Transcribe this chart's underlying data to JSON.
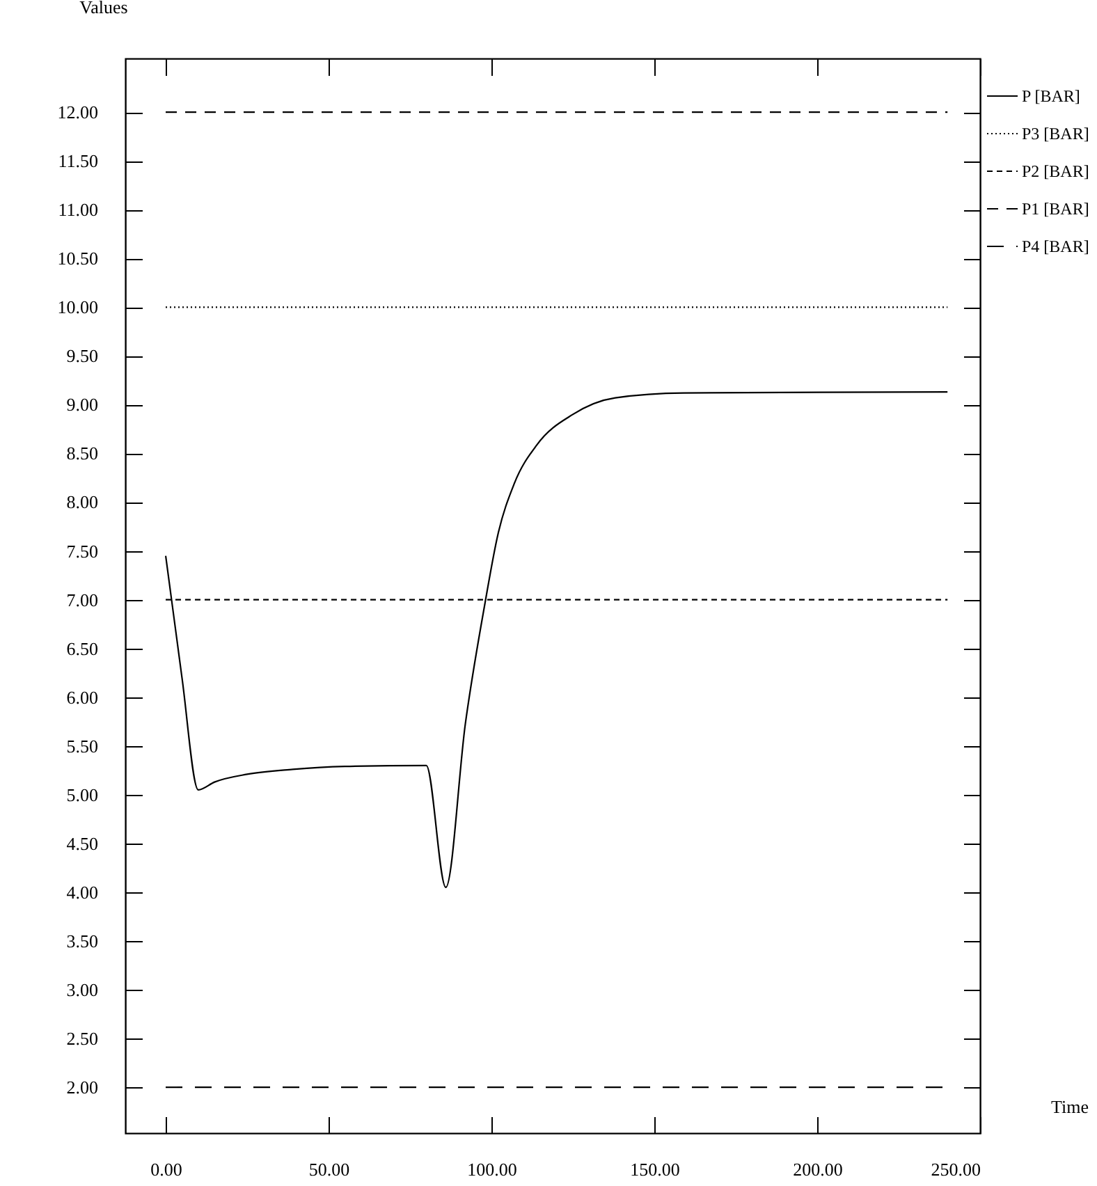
{
  "chart_data": {
    "type": "line",
    "xlabel": "Time",
    "ylabel": "Values",
    "xlim": [
      -12.4,
      250
    ],
    "ylim": [
      1.53,
      12.55
    ],
    "xticks": [
      {
        "value": 0,
        "label": "0.00"
      },
      {
        "value": 50,
        "label": "50.00"
      },
      {
        "value": 100,
        "label": "100.00"
      },
      {
        "value": 150,
        "label": "150.00"
      },
      {
        "value": 200,
        "label": "200.00"
      },
      {
        "value": 250,
        "label": "250.00"
      }
    ],
    "yticks": [
      {
        "value": 2,
        "label": "2.00"
      },
      {
        "value": 2.5,
        "label": "2.50"
      },
      {
        "value": 3,
        "label": "3.00"
      },
      {
        "value": 3.5,
        "label": "3.50"
      },
      {
        "value": 4,
        "label": "4.00"
      },
      {
        "value": 4.5,
        "label": "4.50"
      },
      {
        "value": 5,
        "label": "5.00"
      },
      {
        "value": 5.5,
        "label": "5.50"
      },
      {
        "value": 6,
        "label": "6.00"
      },
      {
        "value": 6.5,
        "label": "6.50"
      },
      {
        "value": 7,
        "label": "7.00"
      },
      {
        "value": 7.5,
        "label": "7.50"
      },
      {
        "value": 8,
        "label": "8.00"
      },
      {
        "value": 8.5,
        "label": "8.50"
      },
      {
        "value": 9,
        "label": "9.00"
      },
      {
        "value": 9.5,
        "label": "9.50"
      },
      {
        "value": 10,
        "label": "10.00"
      },
      {
        "value": 10.5,
        "label": "10.50"
      },
      {
        "value": 11,
        "label": "11.00"
      },
      {
        "value": 11.5,
        "label": "11.50"
      },
      {
        "value": 12,
        "label": "12.00"
      }
    ],
    "grid": false,
    "legend": "top right",
    "marker": "none",
    "series": [
      {
        "name": "P [BAR]",
        "color": "#000000",
        "line_style": "solid",
        "x": [
          0,
          5,
          10,
          15,
          25,
          39,
          55,
          80,
          86,
          92,
          98,
          102,
          107,
          114,
          125,
          138,
          159,
          240
        ],
        "values": [
          7.45,
          6.2,
          5.05,
          5.13,
          5.21,
          5.26,
          5.29,
          5.3,
          4.05,
          5.73,
          6.96,
          7.67,
          8.19,
          8.59,
          8.9,
          9.07,
          9.12,
          9.13
        ]
      },
      {
        "name": "P3 [BAR]",
        "color": "#000000",
        "line_style": "dotted",
        "x": [
          0,
          240
        ],
        "values": [
          10,
          10
        ]
      },
      {
        "name": "P2 [BAR]",
        "color": "#000000",
        "line_style": "dashed",
        "x": [
          0,
          240
        ],
        "values": [
          7,
          7
        ]
      },
      {
        "name": "P1 [BAR]",
        "color": "#000000",
        "line_style": "dashed",
        "x": [
          0,
          240
        ],
        "values": [
          12,
          12
        ]
      },
      {
        "name": "P4 [BAR]",
        "color": "#000000",
        "line_style": "dashed",
        "x": [
          0,
          240
        ],
        "values": [
          2,
          2
        ]
      }
    ]
  }
}
